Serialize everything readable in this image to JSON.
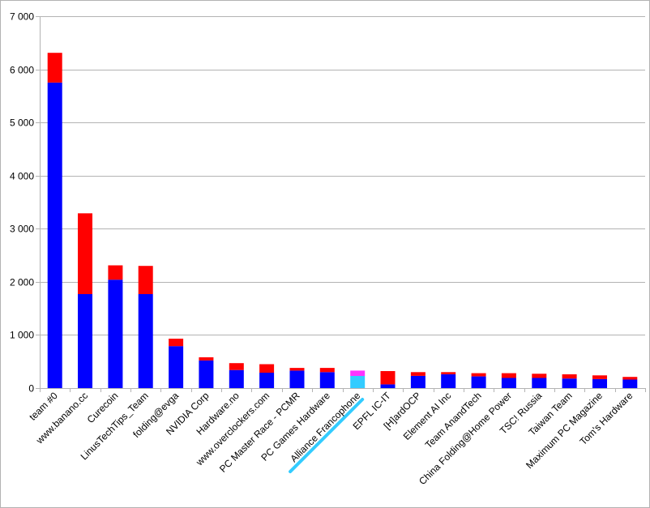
{
  "chart_data": {
    "type": "bar",
    "stacked": true,
    "title": "",
    "xlabel": "",
    "ylabel": "",
    "ylim": [
      0,
      7000
    ],
    "yticks": [
      0,
      1000,
      2000,
      3000,
      4000,
      5000,
      6000,
      7000
    ],
    "ytick_labels": [
      "0",
      "1 000",
      "2 000",
      "3 000",
      "4 000",
      "5 000",
      "6 000",
      "7 000"
    ],
    "grid": true,
    "legend": "none",
    "highlight_category": "Alliance Francophone",
    "categories": [
      "team #0",
      "www.banano.cc",
      "Curecoin",
      "LinusTechTips_Team",
      "folding@evga",
      "NVIDIA Corp",
      "Hardware.no",
      "www.overclockers.com",
      "PC Master Race - PCMR",
      "PC Games Hardware",
      "Alliance Francophone",
      "EPFL IC-IT",
      "[H]ardOCP",
      "Element AI Inc",
      "Team AnandTech",
      "China Folding@Home Power",
      "TSC! Russia",
      "Taiwan Team",
      "Maximum PC Magazine",
      "Tom's Hardware"
    ],
    "series": [
      {
        "color": "#0000ff",
        "highlight_color": "#33ccff",
        "values": [
          5750,
          1770,
          2040,
          1770,
          790,
          520,
          340,
          290,
          330,
          300,
          230,
          70,
          230,
          260,
          220,
          190,
          190,
          180,
          170,
          160
        ]
      },
      {
        "color": "#ff0000",
        "highlight_color": "#ff33ff",
        "values": [
          560,
          1520,
          270,
          530,
          140,
          60,
          130,
          160,
          50,
          80,
          100,
          250,
          70,
          40,
          60,
          90,
          80,
          80,
          70,
          50
        ]
      }
    ]
  }
}
